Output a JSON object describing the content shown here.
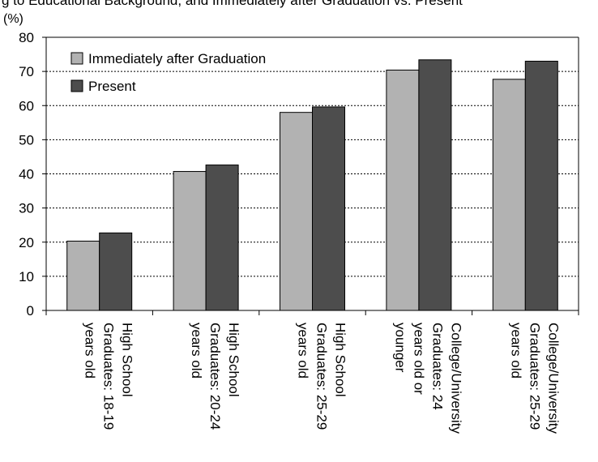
{
  "page": {
    "title_fragment": "g to Educational Background, and Immediately after Graduation vs. Present"
  },
  "chart_data": {
    "type": "bar",
    "title": "",
    "xlabel": "",
    "ylabel": "(%)",
    "ylim": [
      0,
      80
    ],
    "yticks": [
      0,
      10,
      20,
      30,
      40,
      50,
      60,
      70,
      80
    ],
    "grid": "horizontal dotted",
    "legend_position": "top-left",
    "categories": [
      "High School Graduates: 18-19 years old",
      "High School Graduates: 20-24 years old",
      "High School Graduates: 25-29 years old",
      "College/University Graduates: 24 years old or younger",
      "College/University Graduates: 25-29 years old"
    ],
    "category_label_lines": [
      [
        "High School",
        "Graduates: 18-19",
        "years old"
      ],
      [
        "High School",
        "Graduates: 20-24",
        "years old"
      ],
      [
        "High School",
        "Graduates: 25-29",
        "years old"
      ],
      [
        "College/University",
        "Graduates: 24",
        "years old or",
        "younger"
      ],
      [
        "College/University",
        "Graduates: 25-29",
        "years old"
      ]
    ],
    "series": [
      {
        "name": "Immediately after Graduation",
        "color": "#b2b2b2",
        "values": [
          20.3,
          40.7,
          58.0,
          70.4,
          67.7
        ]
      },
      {
        "name": "Present",
        "color": "#4d4d4d",
        "values": [
          22.7,
          42.6,
          59.6,
          73.4,
          73.0
        ]
      }
    ]
  }
}
